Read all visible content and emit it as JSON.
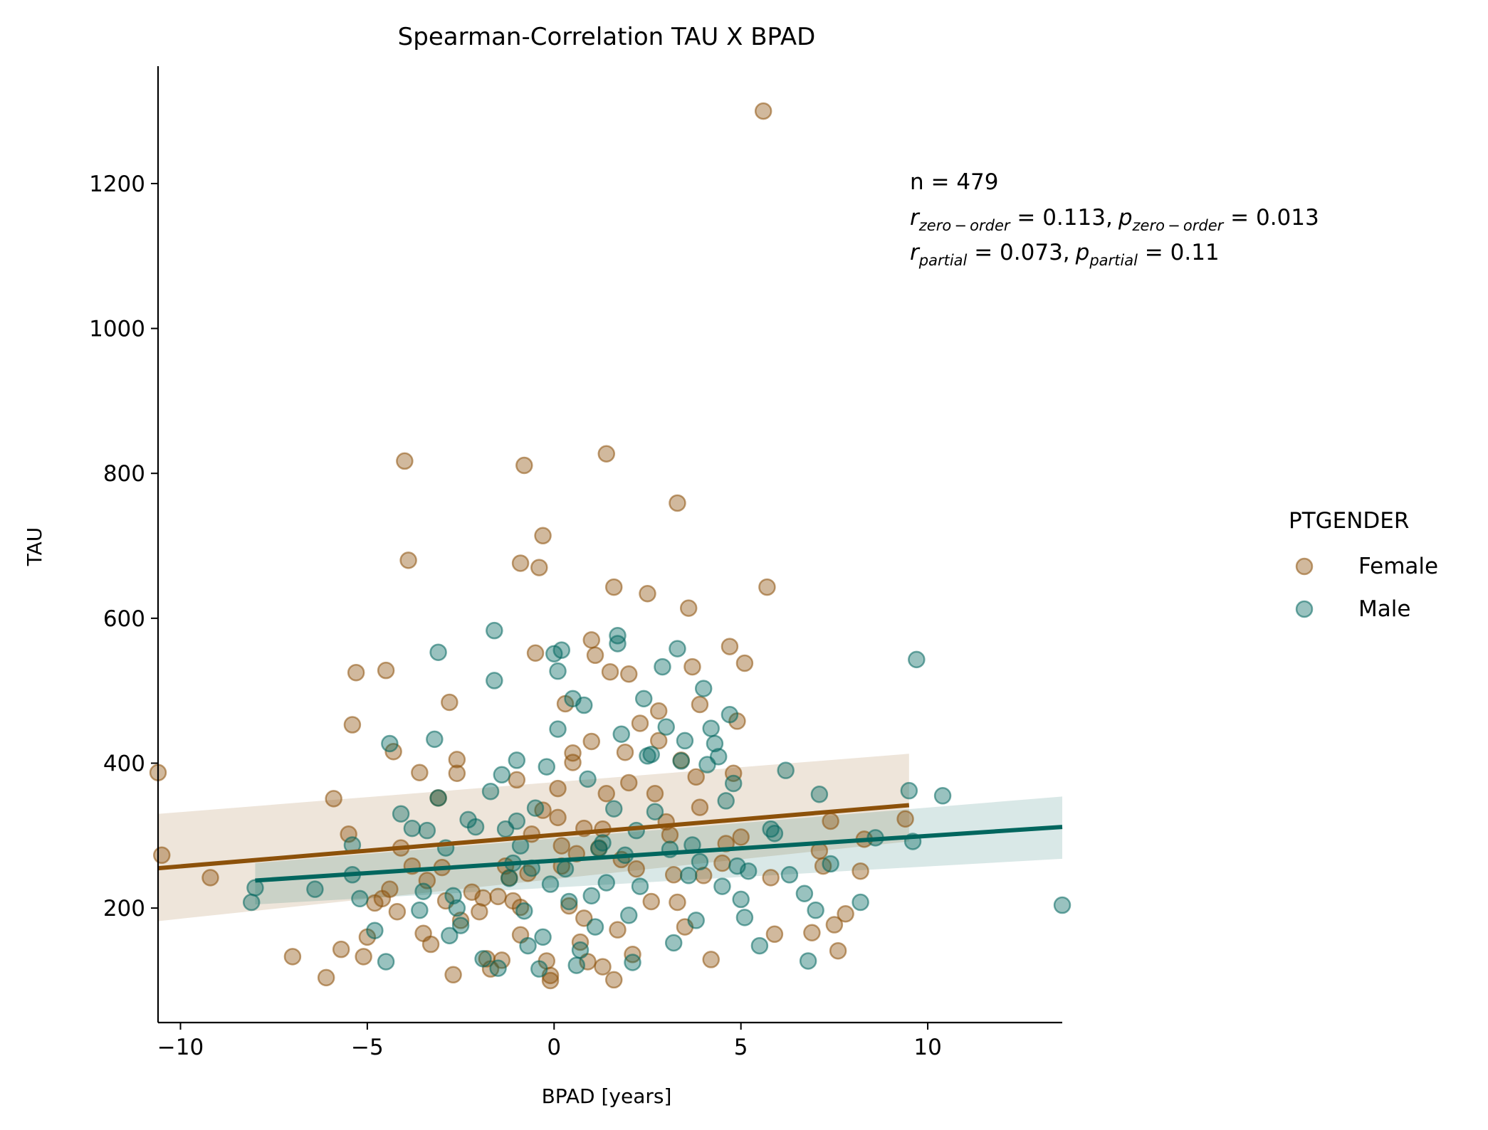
{
  "chart_data": {
    "type": "scatter",
    "title": "Spearman-Correlation TAU X BPAD",
    "xlabel": "BPAD [years]",
    "ylabel": "TAU",
    "xlim": [
      -10.6,
      13.6
    ],
    "ylim": [
      42,
      1362
    ],
    "x_ticks": [
      -10,
      -5,
      0,
      5,
      10
    ],
    "x_tick_labels": [
      "−10",
      "−5",
      "0",
      "5",
      "10"
    ],
    "y_ticks": [
      200,
      400,
      600,
      800,
      1000,
      1200
    ],
    "y_tick_labels": [
      "200",
      "400",
      "600",
      "800",
      "1000",
      "1200"
    ],
    "grid": false,
    "legend": {
      "title": "PTGENDER",
      "placement": "right",
      "entries": [
        "Female",
        "Male"
      ]
    },
    "annotation": {
      "n_line": "n = 479",
      "zero_order": {
        "r_base": "r",
        "r_sub": "zero − order",
        "r_eq": " = 0.113,",
        "p_base": "p",
        "p_sub": "zero − order",
        "p_eq": " = 0.013"
      },
      "partial": {
        "r_base": "r",
        "r_sub": "partial",
        "r_eq": " = 0.073,",
        "p_base": "p",
        "p_sub": "partial",
        "p_eq": " = 0.11"
      }
    },
    "series": [
      {
        "name": "Female",
        "color": "#8c510a",
        "regression": {
          "x": [
            -10.6,
            9.5
          ],
          "y": [
            255,
            342
          ],
          "ci_lower": [
            182,
            292
          ],
          "ci_upper": [
            330,
            413
          ]
        },
        "points": [
          [
            -10.6,
            387
          ],
          [
            -10.5,
            273
          ],
          [
            -9.2,
            242
          ],
          [
            -7.0,
            133
          ],
          [
            -6.1,
            104
          ],
          [
            -5.9,
            351
          ],
          [
            -5.7,
            143
          ],
          [
            -5.5,
            302
          ],
          [
            -5.4,
            453
          ],
          [
            -5.3,
            525
          ],
          [
            -5.1,
            133
          ],
          [
            -5.0,
            160
          ],
          [
            -4.8,
            207
          ],
          [
            -4.6,
            213
          ],
          [
            -4.5,
            528
          ],
          [
            -4.3,
            416
          ],
          [
            -4.4,
            226
          ],
          [
            -4.2,
            195
          ],
          [
            -4.1,
            283
          ],
          [
            -4.0,
            817
          ],
          [
            -3.9,
            680
          ],
          [
            -3.8,
            258
          ],
          [
            -3.6,
            387
          ],
          [
            -3.5,
            165
          ],
          [
            -3.4,
            238
          ],
          [
            -3.3,
            150
          ],
          [
            -3.1,
            352
          ],
          [
            -3.0,
            256
          ],
          [
            -2.9,
            210
          ],
          [
            -2.8,
            484
          ],
          [
            -2.7,
            108
          ],
          [
            -2.6,
            405
          ],
          [
            -2.6,
            386
          ],
          [
            -2.5,
            183
          ],
          [
            -2.2,
            222
          ],
          [
            -2.0,
            195
          ],
          [
            -1.9,
            214
          ],
          [
            -1.8,
            130
          ],
          [
            -1.7,
            116
          ],
          [
            -1.5,
            216
          ],
          [
            -1.4,
            128
          ],
          [
            -1.3,
            258
          ],
          [
            -1.2,
            242
          ],
          [
            -1.1,
            210
          ],
          [
            -1.0,
            377
          ],
          [
            -0.9,
            163
          ],
          [
            -0.9,
            201
          ],
          [
            -0.9,
            676
          ],
          [
            -0.8,
            811
          ],
          [
            -0.7,
            248
          ],
          [
            -0.6,
            302
          ],
          [
            -0.5,
            552
          ],
          [
            -0.4,
            670
          ],
          [
            -0.3,
            335
          ],
          [
            -0.3,
            714
          ],
          [
            -0.2,
            127
          ],
          [
            -0.1,
            107
          ],
          [
            -0.1,
            100
          ],
          [
            0.1,
            325
          ],
          [
            0.1,
            365
          ],
          [
            0.2,
            258
          ],
          [
            0.2,
            286
          ],
          [
            0.3,
            482
          ],
          [
            0.4,
            203
          ],
          [
            0.5,
            401
          ],
          [
            0.5,
            414
          ],
          [
            0.6,
            275
          ],
          [
            0.7,
            153
          ],
          [
            0.8,
            310
          ],
          [
            0.8,
            186
          ],
          [
            0.9,
            126
          ],
          [
            1.0,
            430
          ],
          [
            1.0,
            570
          ],
          [
            1.1,
            549
          ],
          [
            1.2,
            283
          ],
          [
            1.3,
            119
          ],
          [
            1.3,
            309
          ],
          [
            1.4,
            358
          ],
          [
            1.4,
            827
          ],
          [
            1.5,
            526
          ],
          [
            1.6,
            643
          ],
          [
            1.6,
            101
          ],
          [
            1.7,
            170
          ],
          [
            1.8,
            267
          ],
          [
            1.9,
            415
          ],
          [
            2.0,
            523
          ],
          [
            2.0,
            373
          ],
          [
            2.1,
            136
          ],
          [
            2.2,
            254
          ],
          [
            2.3,
            455
          ],
          [
            2.5,
            634
          ],
          [
            2.6,
            209
          ],
          [
            2.7,
            358
          ],
          [
            2.8,
            431
          ],
          [
            2.8,
            472
          ],
          [
            3.0,
            319
          ],
          [
            3.1,
            301
          ],
          [
            3.2,
            246
          ],
          [
            3.3,
            759
          ],
          [
            3.3,
            208
          ],
          [
            3.4,
            404
          ],
          [
            3.5,
            174
          ],
          [
            3.6,
            614
          ],
          [
            3.7,
            533
          ],
          [
            3.8,
            381
          ],
          [
            3.9,
            481
          ],
          [
            3.9,
            339
          ],
          [
            4.0,
            245
          ],
          [
            4.2,
            129
          ],
          [
            4.5,
            262
          ],
          [
            4.6,
            289
          ],
          [
            4.7,
            561
          ],
          [
            4.8,
            386
          ],
          [
            4.9,
            458
          ],
          [
            5.0,
            298
          ],
          [
            5.1,
            538
          ],
          [
            5.6,
            1300
          ],
          [
            5.7,
            643
          ],
          [
            5.8,
            242
          ],
          [
            5.9,
            164
          ],
          [
            6.9,
            166
          ],
          [
            7.1,
            279
          ],
          [
            7.2,
            258
          ],
          [
            7.4,
            320
          ],
          [
            7.5,
            177
          ],
          [
            7.6,
            141
          ],
          [
            7.8,
            192
          ],
          [
            8.2,
            251
          ],
          [
            8.3,
            295
          ],
          [
            9.4,
            323
          ]
        ]
      },
      {
        "name": "Male",
        "color": "#01665e",
        "regression": {
          "x": [
            -8.0,
            13.6
          ],
          "y": [
            238,
            312
          ],
          "ci_lower": [
            205,
            268
          ],
          "ci_upper": [
            262,
            354
          ]
        },
        "points": [
          [
            -8.1,
            208
          ],
          [
            -8.0,
            228
          ],
          [
            -6.4,
            226
          ],
          [
            -5.4,
            287
          ],
          [
            -5.4,
            246
          ],
          [
            -5.2,
            213
          ],
          [
            -4.8,
            169
          ],
          [
            -4.5,
            126
          ],
          [
            -4.4,
            427
          ],
          [
            -4.1,
            330
          ],
          [
            -3.8,
            310
          ],
          [
            -3.6,
            197
          ],
          [
            -3.5,
            223
          ],
          [
            -3.4,
            307
          ],
          [
            -3.2,
            433
          ],
          [
            -3.1,
            553
          ],
          [
            -3.1,
            352
          ],
          [
            -2.9,
            283
          ],
          [
            -2.8,
            162
          ],
          [
            -2.7,
            217
          ],
          [
            -2.6,
            200
          ],
          [
            -2.5,
            176
          ],
          [
            -2.3,
            322
          ],
          [
            -2.1,
            312
          ],
          [
            -1.9,
            130
          ],
          [
            -1.7,
            361
          ],
          [
            -1.6,
            583
          ],
          [
            -1.6,
            514
          ],
          [
            -1.5,
            117
          ],
          [
            -1.4,
            384
          ],
          [
            -1.3,
            309
          ],
          [
            -1.2,
            241
          ],
          [
            -1.1,
            262
          ],
          [
            -1.0,
            404
          ],
          [
            -1.0,
            320
          ],
          [
            -0.9,
            286
          ],
          [
            -0.8,
            196
          ],
          [
            -0.7,
            148
          ],
          [
            -0.6,
            255
          ],
          [
            -0.5,
            338
          ],
          [
            -0.4,
            116
          ],
          [
            -0.3,
            160
          ],
          [
            -0.2,
            395
          ],
          [
            -0.1,
            233
          ],
          [
            0.0,
            551
          ],
          [
            0.1,
            527
          ],
          [
            0.1,
            447
          ],
          [
            0.2,
            556
          ],
          [
            0.3,
            254
          ],
          [
            0.4,
            209
          ],
          [
            0.5,
            489
          ],
          [
            0.6,
            121
          ],
          [
            0.7,
            142
          ],
          [
            0.8,
            480
          ],
          [
            0.9,
            378
          ],
          [
            1.0,
            217
          ],
          [
            1.1,
            174
          ],
          [
            1.2,
            282
          ],
          [
            1.3,
            290
          ],
          [
            1.4,
            235
          ],
          [
            1.6,
            337
          ],
          [
            1.7,
            565
          ],
          [
            1.7,
            576
          ],
          [
            1.8,
            440
          ],
          [
            1.9,
            273
          ],
          [
            2.0,
            190
          ],
          [
            2.1,
            125
          ],
          [
            2.2,
            307
          ],
          [
            2.3,
            230
          ],
          [
            2.4,
            489
          ],
          [
            2.5,
            410
          ],
          [
            2.6,
            412
          ],
          [
            2.7,
            333
          ],
          [
            2.9,
            533
          ],
          [
            3.0,
            450
          ],
          [
            3.1,
            281
          ],
          [
            3.2,
            152
          ],
          [
            3.3,
            558
          ],
          [
            3.4,
            403
          ],
          [
            3.5,
            431
          ],
          [
            3.6,
            245
          ],
          [
            3.7,
            287
          ],
          [
            3.8,
            183
          ],
          [
            3.9,
            264
          ],
          [
            4.0,
            503
          ],
          [
            4.1,
            398
          ],
          [
            4.2,
            448
          ],
          [
            4.3,
            427
          ],
          [
            4.4,
            409
          ],
          [
            4.5,
            230
          ],
          [
            4.6,
            348
          ],
          [
            4.7,
            467
          ],
          [
            4.8,
            372
          ],
          [
            4.9,
            258
          ],
          [
            5.0,
            212
          ],
          [
            5.1,
            187
          ],
          [
            5.2,
            251
          ],
          [
            5.5,
            148
          ],
          [
            5.8,
            309
          ],
          [
            5.9,
            303
          ],
          [
            6.2,
            390
          ],
          [
            6.3,
            246
          ],
          [
            6.7,
            220
          ],
          [
            6.8,
            127
          ],
          [
            7.0,
            197
          ],
          [
            7.1,
            357
          ],
          [
            7.4,
            261
          ],
          [
            8.2,
            208
          ],
          [
            8.6,
            297
          ],
          [
            9.5,
            362
          ],
          [
            9.6,
            292
          ],
          [
            9.7,
            543
          ],
          [
            10.4,
            355
          ],
          [
            13.6,
            204
          ]
        ]
      }
    ]
  }
}
